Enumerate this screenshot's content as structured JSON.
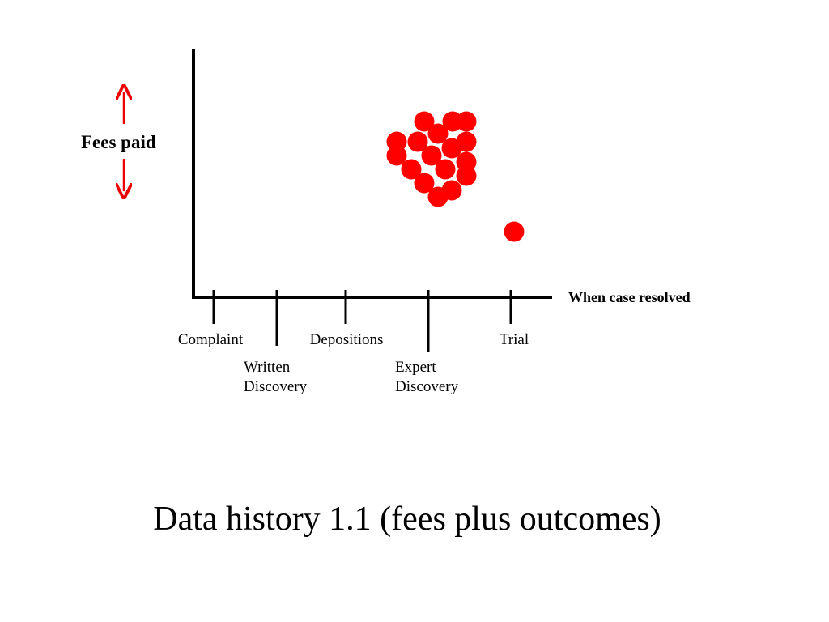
{
  "title": "Data history 1.1 (fees plus outcomes)",
  "y_axis_label": "Fees paid",
  "x_axis_label": "When case resolved",
  "stages": [
    {
      "lines": [
        "Complaint"
      ]
    },
    {
      "lines": [
        "Written",
        "Discovery"
      ]
    },
    {
      "lines": [
        "Depositions"
      ]
    },
    {
      "lines": [
        "Expert",
        "Discovery"
      ]
    },
    {
      "lines": [
        "Trial"
      ]
    }
  ]
}
